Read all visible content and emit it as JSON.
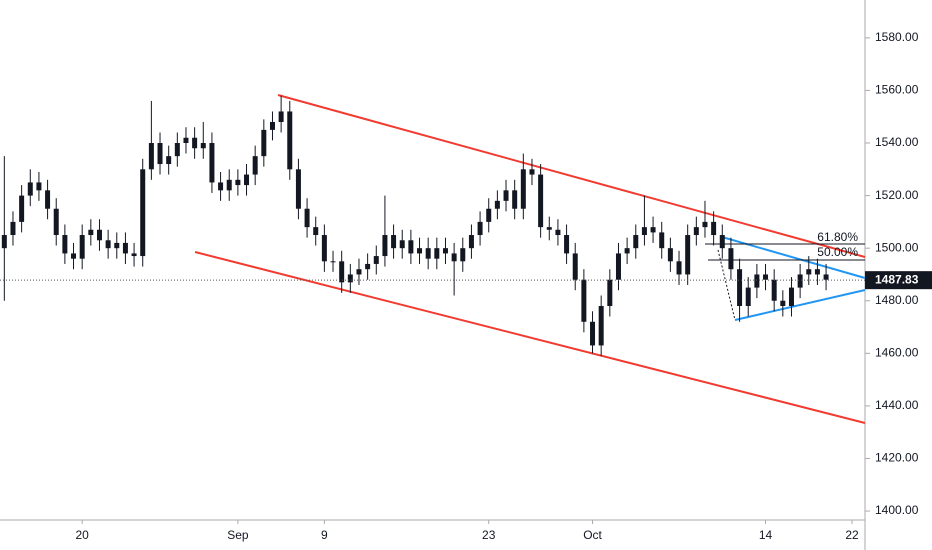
{
  "chart_data": {
    "type": "candlestick",
    "categories": [
      null,
      null,
      null,
      null,
      null,
      null,
      null,
      null,
      null,
      "20",
      null,
      null,
      null,
      null,
      null,
      null,
      null,
      null,
      null,
      null,
      null,
      null,
      null,
      null,
      null,
      null,
      null,
      "Sep",
      null,
      null,
      null,
      null,
      null,
      null,
      null,
      null,
      null,
      "9",
      null,
      null,
      null,
      null,
      null,
      null,
      null,
      null,
      null,
      null,
      null,
      null,
      null,
      null,
      null,
      null,
      null,
      null,
      "23",
      null,
      null,
      null,
      null,
      null,
      null,
      null,
      null,
      null,
      null,
      null,
      "Oct",
      null,
      null,
      null,
      null,
      null,
      null,
      null,
      null,
      null,
      null,
      null,
      null,
      null,
      null,
      null,
      null,
      null,
      null,
      null,
      "14",
      null,
      null,
      null,
      null,
      null,
      null,
      null,
      null,
      null,
      "22",
      null
    ],
    "open": [
      1500,
      1505,
      1510,
      1520,
      1525,
      1522,
      1515,
      1505,
      1498,
      1496,
      1505,
      1507,
      1503,
      1500,
      1502,
      1498,
      1497,
      1530,
      1540,
      1532,
      1535,
      1540,
      1542,
      1538,
      1540,
      1525,
      1522,
      1526,
      1524,
      1528,
      1535,
      1545,
      1548,
      1552,
      1530,
      1515,
      1508,
      1505,
      1495,
      1495,
      1487,
      1490,
      1492,
      1494,
      1497,
      1505,
      1500,
      1503,
      1498,
      1500,
      1496,
      1500,
      1498,
      1495,
      1500,
      1505,
      1510,
      1515,
      1518,
      1522,
      1515,
      1530,
      1528,
      1508,
      1507,
      1505,
      1498,
      1488,
      1472,
      1463,
      1478,
      1488,
      1498,
      1500,
      1505,
      1508,
      1506,
      1500,
      1495,
      1490,
      1505,
      1508,
      1510,
      1505,
      1500,
      1492,
      1478,
      1485,
      1490,
      1488,
      1480,
      1478,
      1485,
      1490,
      1492,
      1490,
      null,
      null,
      null,
      null
    ],
    "high": [
      1535,
      1514,
      1524,
      1530,
      1529,
      1526,
      1519,
      1509,
      1502,
      1509,
      1511,
      1511,
      1507,
      1506,
      1506,
      1502,
      1534,
      1556,
      1544,
      1539,
      1544,
      1546,
      1546,
      1548,
      1544,
      1529,
      1530,
      1530,
      1532,
      1539,
      1549,
      1552,
      1558,
      1556,
      1534,
      1519,
      1512,
      1509,
      1499,
      1499,
      1494,
      1496,
      1498,
      1501,
      1520,
      1509,
      1507,
      1507,
      1504,
      1504,
      1504,
      1504,
      1502,
      1504,
      1509,
      1514,
      1519,
      1522,
      1526,
      1526,
      1536,
      1534,
      1532,
      1512,
      1511,
      1509,
      1502,
      1492,
      1476,
      1482,
      1492,
      1502,
      1504,
      1509,
      1520,
      1512,
      1510,
      1504,
      1499,
      1509,
      1512,
      1518,
      1514,
      1509,
      1504,
      1496,
      1489,
      1494,
      1494,
      1492,
      1484,
      1489,
      1494,
      1497,
      1496,
      1494,
      null,
      null,
      null,
      null
    ],
    "low": [
      1480,
      1501,
      1506,
      1516,
      1518,
      1511,
      1501,
      1494,
      1492,
      1492,
      1501,
      1499,
      1496,
      1496,
      1494,
      1493,
      1493,
      1526,
      1528,
      1528,
      1531,
      1536,
      1534,
      1534,
      1521,
      1518,
      1518,
      1520,
      1520,
      1524,
      1531,
      1541,
      1544,
      1526,
      1511,
      1504,
      1501,
      1491,
      1491,
      1483,
      1483,
      1486,
      1488,
      1490,
      1493,
      1496,
      1496,
      1494,
      1494,
      1492,
      1492,
      1494,
      1482,
      1491,
      1496,
      1501,
      1506,
      1511,
      1514,
      1511,
      1511,
      1524,
      1504,
      1503,
      1501,
      1494,
      1484,
      1468,
      1460,
      1459,
      1474,
      1484,
      1494,
      1496,
      1501,
      1502,
      1496,
      1491,
      1486,
      1486,
      1501,
      1504,
      1501,
      1496,
      1488,
      1472,
      1474,
      1481,
      1484,
      1476,
      1474,
      1474,
      1481,
      1486,
      1486,
      1484,
      null,
      null,
      null,
      null
    ],
    "close": [
      1505,
      1510,
      1520,
      1525,
      1522,
      1515,
      1505,
      1498,
      1496,
      1505,
      1507,
      1503,
      1500,
      1502,
      1498,
      1497,
      1530,
      1540,
      1532,
      1535,
      1540,
      1542,
      1538,
      1540,
      1525,
      1522,
      1526,
      1524,
      1528,
      1535,
      1545,
      1548,
      1552,
      1530,
      1515,
      1508,
      1505,
      1495,
      1495,
      1487,
      1490,
      1492,
      1494,
      1497,
      1505,
      1500,
      1503,
      1498,
      1500,
      1496,
      1500,
      1498,
      1495,
      1500,
      1505,
      1510,
      1515,
      1518,
      1522,
      1515,
      1530,
      1528,
      1508,
      1507,
      1505,
      1498,
      1488,
      1472,
      1463,
      1478,
      1488,
      1498,
      1500,
      1505,
      1508,
      1506,
      1500,
      1495,
      1490,
      1505,
      1508,
      1510,
      1505,
      1500,
      1492,
      1478,
      1485,
      1490,
      1488,
      1480,
      1478,
      1485,
      1490,
      1492,
      1490,
      1488,
      null,
      null,
      null,
      null
    ],
    "color": "#131722",
    "ylim": [
      1396.6,
      1594.4
    ],
    "yticks": [
      {
        "value": 1400,
        "label": "1400.00"
      },
      {
        "value": 1420,
        "label": "1420.00"
      },
      {
        "value": 1440,
        "label": "1440.00"
      },
      {
        "value": 1460,
        "label": "1460.00"
      },
      {
        "value": 1480,
        "label": "1480.00"
      },
      {
        "value": 1500,
        "label": "1500.00"
      },
      {
        "value": 1520,
        "label": "1520.00"
      },
      {
        "value": 1540,
        "label": "1540.00"
      },
      {
        "value": 1560,
        "label": "1560.00"
      },
      {
        "value": 1580,
        "label": "1580.00"
      }
    ],
    "last_price": 1487.83,
    "annotations": [
      "61.80%",
      "50.00%"
    ]
  }
}
